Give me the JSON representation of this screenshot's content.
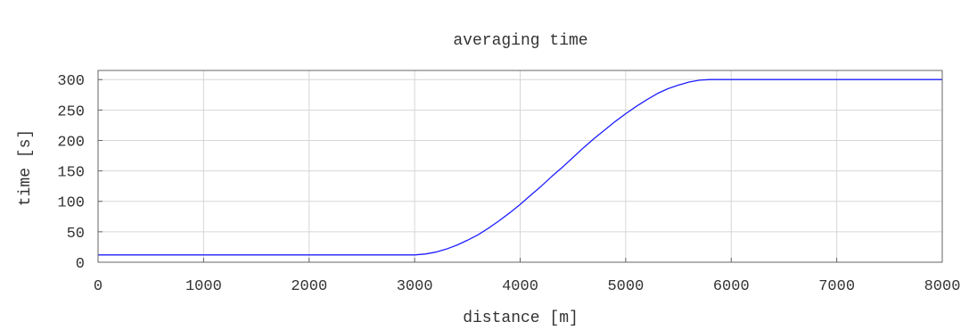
{
  "chart_data": {
    "type": "line",
    "title": "averaging time",
    "xlabel": "distance [m]",
    "ylabel": "time [s]",
    "xlim": [
      0,
      8000
    ],
    "ylim": [
      0,
      315
    ],
    "xticks": [
      0,
      1000,
      2000,
      3000,
      4000,
      5000,
      6000,
      7000,
      8000
    ],
    "yticks": [
      0,
      50,
      100,
      150,
      200,
      250,
      300
    ],
    "grid": true,
    "series": [
      {
        "color": "#1f1fff",
        "x": [
          0,
          1000,
          2000,
          3000,
          3100,
          3200,
          3300,
          3400,
          3500,
          3600,
          3700,
          3800,
          3900,
          4000,
          4100,
          4200,
          4300,
          4400,
          4500,
          4600,
          4700,
          4800,
          4900,
          5000,
          5100,
          5200,
          5300,
          5400,
          5500,
          5600,
          5700,
          5800,
          5900,
          6000,
          7000,
          8000
        ],
        "y": [
          12,
          12,
          12,
          12,
          13.5,
          16.5,
          21.5,
          28,
          36,
          45,
          56,
          68,
          81,
          95,
          110,
          125,
          141,
          156,
          172,
          188,
          203,
          217,
          231,
          244,
          256,
          267,
          277,
          285,
          291,
          296,
          299,
          300,
          300,
          300,
          300,
          300
        ]
      }
    ]
  }
}
